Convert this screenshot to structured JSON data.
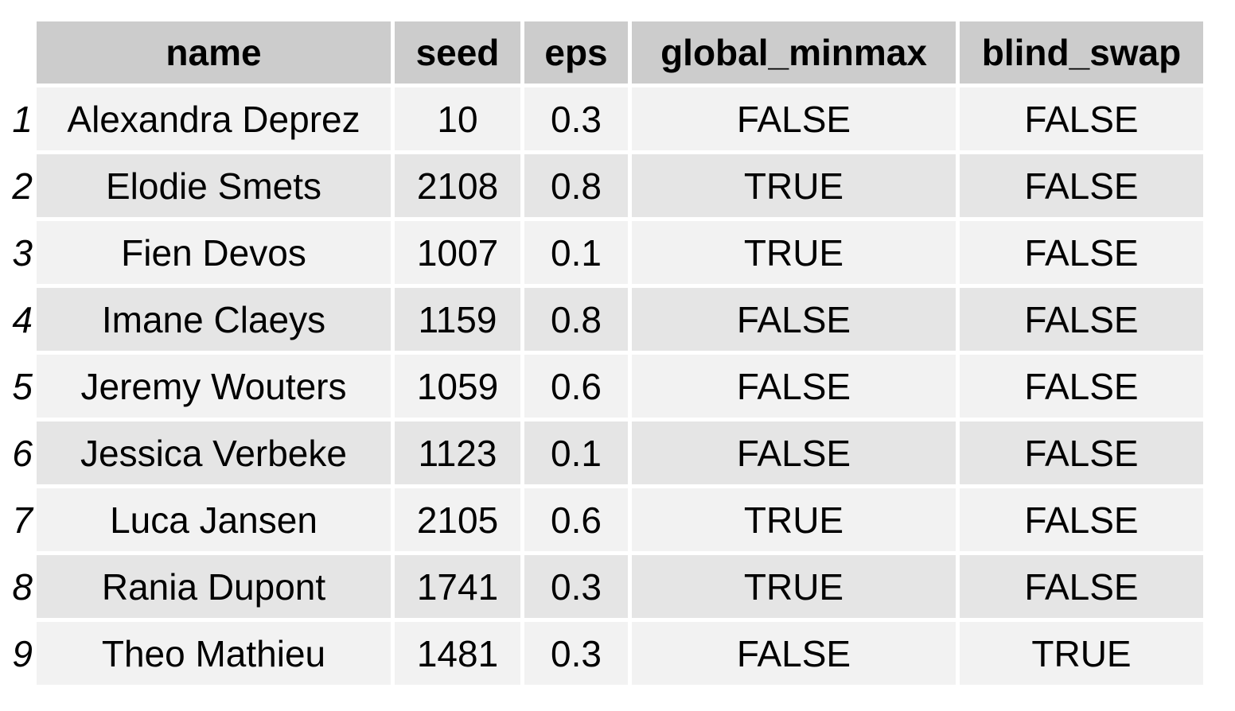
{
  "table": {
    "headers": [
      "name",
      "seed",
      "eps",
      "global_minmax",
      "blind_swap"
    ],
    "rows": [
      {
        "index": "1",
        "cells": [
          "Alexandra Deprez",
          "10",
          "0.3",
          "FALSE",
          "FALSE"
        ]
      },
      {
        "index": "2",
        "cells": [
          "Elodie Smets",
          "2108",
          "0.8",
          "TRUE",
          "FALSE"
        ]
      },
      {
        "index": "3",
        "cells": [
          "Fien Devos",
          "1007",
          "0.1",
          "TRUE",
          "FALSE"
        ]
      },
      {
        "index": "4",
        "cells": [
          "Imane Claeys",
          "1159",
          "0.8",
          "FALSE",
          "FALSE"
        ]
      },
      {
        "index": "5",
        "cells": [
          "Jeremy Wouters",
          "1059",
          "0.6",
          "FALSE",
          "FALSE"
        ]
      },
      {
        "index": "6",
        "cells": [
          "Jessica Verbeke",
          "1123",
          "0.1",
          "FALSE",
          "FALSE"
        ]
      },
      {
        "index": "7",
        "cells": [
          "Luca Jansen",
          "2105",
          "0.6",
          "TRUE",
          "FALSE"
        ]
      },
      {
        "index": "8",
        "cells": [
          "Rania Dupont",
          "1741",
          "0.3",
          "TRUE",
          "FALSE"
        ]
      },
      {
        "index": "9",
        "cells": [
          "Theo Mathieu",
          "1481",
          "0.3",
          "FALSE",
          "TRUE"
        ]
      }
    ]
  },
  "colors": {
    "header_bg": "#cccccc",
    "row_odd_bg": "#f2f2f2",
    "row_even_bg": "#e5e5e5",
    "text": "#000000"
  }
}
